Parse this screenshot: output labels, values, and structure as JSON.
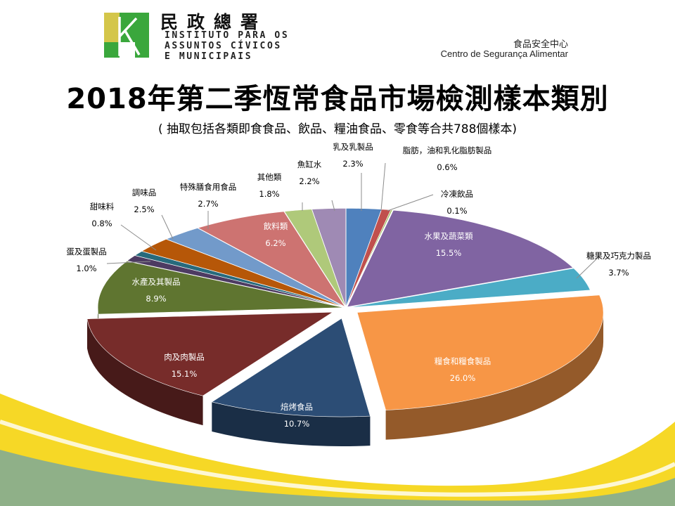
{
  "header": {
    "logo_name_zh": "民政總署",
    "logo_name_pt_lines": [
      "INSTITUTO PARA OS",
      "ASSUNTOS CÍVICOS",
      "E MUNICIPAIS"
    ],
    "center_name_zh": "食品安全中心",
    "center_name_pt": "Centro de Segurança Alimentar"
  },
  "colors": {
    "logo_yellow": "#d4c64a",
    "logo_green": "#3aa73c",
    "background_wave_yellow": "#f5d100",
    "background_wave_blue": "#3a8fd8"
  },
  "chart_data": {
    "type": "pie",
    "title": "2018年第二季恆常食品市場檢測樣本類別",
    "subtitle": "( 抽取包括各類即食食品、飲品、糧油食品、零食等合共788個樣本)",
    "unit": "%",
    "slices": [
      {
        "label": "乳及乳製品",
        "value": 2.3,
        "value_label": "2.3%",
        "color": "#4f81bd"
      },
      {
        "label": "脂肪，油和乳化脂肪製品",
        "value": 0.6,
        "value_label": "0.6%",
        "color": "#c0504d"
      },
      {
        "label": "冷凍飲品",
        "value": 0.1,
        "value_label": "0.1%",
        "color": "#9bbb59"
      },
      {
        "label": "水果及蔬菜類",
        "value": 15.5,
        "value_label": "15.5%",
        "color": "#8064a2"
      },
      {
        "label": "糖果及巧克力製品",
        "value": 3.7,
        "value_label": "3.7%",
        "color": "#4bacc6"
      },
      {
        "label": "糧食和糧食製品",
        "value": 26.0,
        "value_label": "26.0%",
        "color": "#f79646"
      },
      {
        "label": "焙烤食品",
        "value": 10.7,
        "value_label": "10.7%",
        "color": "#2c4d75"
      },
      {
        "label": "肉及肉製品",
        "value": 15.1,
        "value_label": "15.1%",
        "color": "#772c2a"
      },
      {
        "label": "水產及其製品",
        "value": 8.9,
        "value_label": "8.9%",
        "color": "#5f7530"
      },
      {
        "label": "蛋及蛋製品",
        "value": 1.0,
        "value_label": "1.0%",
        "color": "#4d3b62"
      },
      {
        "label": "甜味料",
        "value": 0.8,
        "value_label": "0.8%",
        "color": "#276a7c"
      },
      {
        "label": "調味品",
        "value": 2.5,
        "value_label": "2.5%",
        "color": "#b65708"
      },
      {
        "label": "特殊膳食用食品",
        "value": 2.7,
        "value_label": "2.7%",
        "color": "#729aca"
      },
      {
        "label": "飲料類",
        "value": 6.2,
        "value_label": "6.2%",
        "color": "#cd7371"
      },
      {
        "label": "其他類",
        "value": 1.8,
        "value_label": "1.8%",
        "color": "#afc97a"
      },
      {
        "label": "魚缸水",
        "value": 2.2,
        "value_label": "2.2%",
        "color": "#9f8ab4"
      }
    ]
  }
}
